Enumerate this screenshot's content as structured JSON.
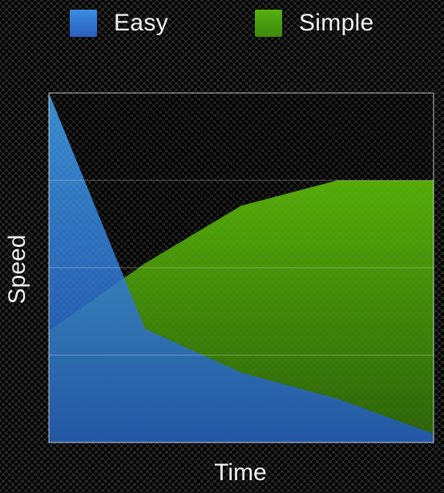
{
  "chart_data": {
    "type": "area",
    "xlabel": "Time",
    "ylabel": "Speed",
    "x": [
      0,
      1,
      2,
      3,
      4
    ],
    "ylim": [
      0,
      4
    ],
    "grid": true,
    "legend_position": "top",
    "series": [
      {
        "name": "Simple",
        "color": "#4ea00c",
        "values": [
          1.28,
          2.05,
          2.71,
          3.0,
          3.0
        ]
      },
      {
        "name": "Easy",
        "color": "#2f6fc8",
        "values": [
          4.0,
          1.3,
          0.8,
          0.5,
          0.1
        ]
      }
    ]
  }
}
